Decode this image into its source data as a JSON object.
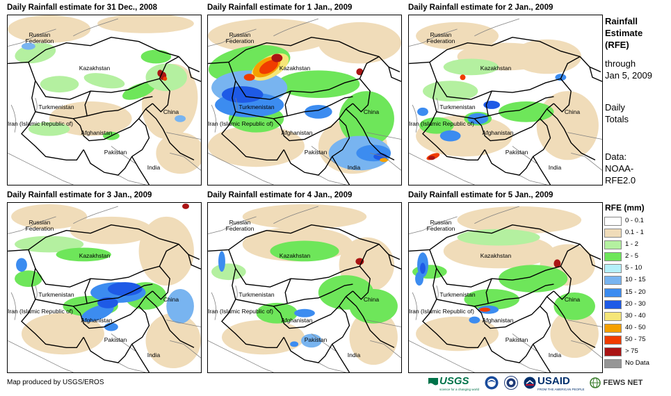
{
  "panels": [
    {
      "title": "Daily Rainfall estimate for 31 Dec., 2008"
    },
    {
      "title": "Daily Rainfall estimate for 1 Jan., 2009"
    },
    {
      "title": "Daily Rainfall estimate for 2 Jan., 2009"
    },
    {
      "title": "Daily Rainfall estimate for 3 Jan., 2009"
    },
    {
      "title": "Daily Rainfall estimate for 4 Jan., 2009"
    },
    {
      "title": "Daily Rainfall estimate for 5 Jan., 2009"
    }
  ],
  "labels": {
    "russia": "Russian Federation",
    "kazakhstan": "Kazakhstan",
    "turkmenistan": "Turkmenistan",
    "iran": "Iran (Islamic Republic of)",
    "afghanistan": "Afghanistan",
    "pakistan": "Pakistan",
    "india": "India",
    "china": "China"
  },
  "side": {
    "heading": [
      "Rainfall",
      "Estimate",
      "(RFE)"
    ],
    "through": [
      "through",
      "Jan 5, 2009"
    ],
    "totals": [
      "Daily",
      "Totals"
    ],
    "data": [
      "Data:",
      "NOAA-",
      "RFE2.0"
    ]
  },
  "legend": {
    "title": "RFE (mm)",
    "items": [
      {
        "label": "0 - 0.1",
        "color": "#ffffff"
      },
      {
        "label": "0.1 - 1",
        "color": "#f0dcb9"
      },
      {
        "label": "1 - 2",
        "color": "#b4f0a0"
      },
      {
        "label": "2 - 5",
        "color": "#6ee65a"
      },
      {
        "label": "5 - 10",
        "color": "#b4f0fa"
      },
      {
        "label": "10 - 15",
        "color": "#78b4f0"
      },
      {
        "label": "15 - 20",
        "color": "#3c8cf0"
      },
      {
        "label": "20 - 30",
        "color": "#1e5ae6"
      },
      {
        "label": "30 - 40",
        "color": "#f5e678"
      },
      {
        "label": "40 - 50",
        "color": "#f5a000"
      },
      {
        "label": "50 - 75",
        "color": "#f03c00"
      },
      {
        "label": "> 75",
        "color": "#aa1414"
      },
      {
        "label": "No Data",
        "color": "#969696"
      }
    ]
  },
  "footer": {
    "credit": "Map produced by USGS/EROS",
    "logos": {
      "usgs": "USGS",
      "usgs_tag": "science for a changing world",
      "usaid": "USAID",
      "usaid_tag": "FROM THE AMERICAN PEOPLE",
      "fews": "FEWS NET"
    }
  }
}
